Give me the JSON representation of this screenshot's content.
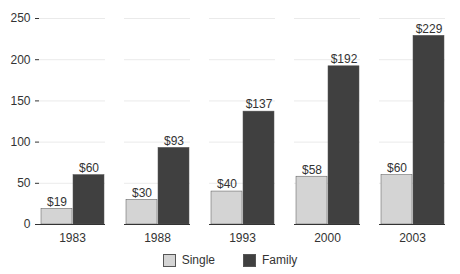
{
  "chart_data": {
    "type": "bar",
    "categories": [
      "1983",
      "1988",
      "1993",
      "2000",
      "2003"
    ],
    "series": [
      {
        "name": "Single",
        "color": "#d4d4d4",
        "values": [
          19,
          30,
          40,
          58,
          60
        ],
        "value_labels": [
          "$19",
          "$30",
          "$40",
          "$58",
          "$60"
        ]
      },
      {
        "name": "Family",
        "color": "#404040",
        "values": [
          60,
          93,
          137,
          192,
          229
        ],
        "value_labels": [
          "$60",
          "$93",
          "$137",
          "$192",
          "$229"
        ]
      }
    ],
    "ylim": [
      0,
      250
    ],
    "yticks": [
      0,
      50,
      100,
      150,
      200,
      250
    ],
    "grid": true,
    "data_labels": true,
    "legend": "bottom"
  }
}
